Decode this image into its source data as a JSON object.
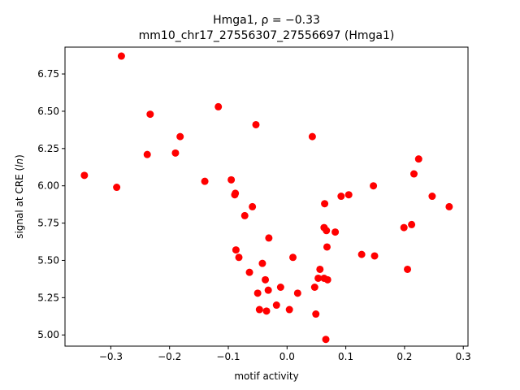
{
  "chart_data": {
    "type": "scatter",
    "title": "Hmga1, ρ = −0.33",
    "subtitle": "mm10_chr17_27556307_27556697 (Hmga1)",
    "xlabel": "motif activity",
    "ylabel_main": "signal at CRE (",
    "ylabel_italic": "ln",
    "ylabel_end": ")",
    "xlim": [
      -0.378,
      0.308
    ],
    "ylim": [
      4.925,
      6.93
    ],
    "xticks": [
      -0.3,
      -0.2,
      -0.1,
      0.0,
      0.1,
      0.2,
      0.3
    ],
    "xtick_labels": [
      "−0.3",
      "−0.2",
      "−0.1",
      "0.0",
      "0.1",
      "0.2",
      "0.3"
    ],
    "yticks": [
      5.0,
      5.25,
      5.5,
      5.75,
      6.0,
      6.25,
      6.5,
      6.75
    ],
    "ytick_labels": [
      "5.00",
      "5.25",
      "5.50",
      "5.75",
      "6.00",
      "6.25",
      "6.50",
      "6.75"
    ],
    "grid": false,
    "marker_color": "#ff0000",
    "points": [
      {
        "x": -0.345,
        "y": 6.07
      },
      {
        "x": -0.29,
        "y": 5.99
      },
      {
        "x": -0.282,
        "y": 6.87
      },
      {
        "x": -0.238,
        "y": 6.21
      },
      {
        "x": -0.233,
        "y": 6.48
      },
      {
        "x": -0.19,
        "y": 6.22
      },
      {
        "x": -0.182,
        "y": 6.33
      },
      {
        "x": -0.14,
        "y": 6.03
      },
      {
        "x": -0.117,
        "y": 6.53
      },
      {
        "x": -0.095,
        "y": 6.04
      },
      {
        "x": -0.089,
        "y": 5.94
      },
      {
        "x": -0.088,
        "y": 5.95
      },
      {
        "x": -0.087,
        "y": 5.57
      },
      {
        "x": -0.082,
        "y": 5.52
      },
      {
        "x": -0.072,
        "y": 5.8
      },
      {
        "x": -0.064,
        "y": 5.42
      },
      {
        "x": -0.059,
        "y": 5.86
      },
      {
        "x": -0.053,
        "y": 6.41
      },
      {
        "x": -0.05,
        "y": 5.28
      },
      {
        "x": -0.047,
        "y": 5.17
      },
      {
        "x": -0.042,
        "y": 5.48
      },
      {
        "x": -0.037,
        "y": 5.37
      },
      {
        "x": -0.035,
        "y": 5.16
      },
      {
        "x": -0.032,
        "y": 5.3
      },
      {
        "x": -0.031,
        "y": 5.65
      },
      {
        "x": -0.018,
        "y": 5.2
      },
      {
        "x": -0.011,
        "y": 5.32
      },
      {
        "x": 0.004,
        "y": 5.17
      },
      {
        "x": 0.01,
        "y": 5.52
      },
      {
        "x": 0.018,
        "y": 5.28
      },
      {
        "x": 0.043,
        "y": 6.33
      },
      {
        "x": 0.047,
        "y": 5.32
      },
      {
        "x": 0.049,
        "y": 5.14
      },
      {
        "x": 0.053,
        "y": 5.38
      },
      {
        "x": 0.056,
        "y": 5.44
      },
      {
        "x": 0.063,
        "y": 5.72
      },
      {
        "x": 0.063,
        "y": 5.38
      },
      {
        "x": 0.064,
        "y": 5.88
      },
      {
        "x": 0.066,
        "y": 4.97
      },
      {
        "x": 0.067,
        "y": 5.7
      },
      {
        "x": 0.068,
        "y": 5.59
      },
      {
        "x": 0.069,
        "y": 5.37
      },
      {
        "x": 0.082,
        "y": 5.69
      },
      {
        "x": 0.092,
        "y": 5.93
      },
      {
        "x": 0.105,
        "y": 5.94
      },
      {
        "x": 0.127,
        "y": 5.54
      },
      {
        "x": 0.147,
        "y": 6.0
      },
      {
        "x": 0.149,
        "y": 5.53
      },
      {
        "x": 0.199,
        "y": 5.72
      },
      {
        "x": 0.205,
        "y": 5.44
      },
      {
        "x": 0.212,
        "y": 5.74
      },
      {
        "x": 0.216,
        "y": 6.08
      },
      {
        "x": 0.224,
        "y": 6.18
      },
      {
        "x": 0.247,
        "y": 5.93
      },
      {
        "x": 0.276,
        "y": 5.86
      }
    ]
  }
}
